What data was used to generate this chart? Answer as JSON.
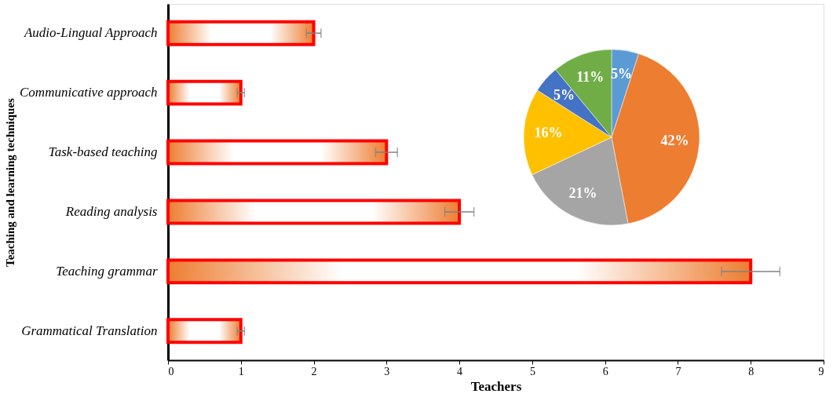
{
  "chart_data": [
    {
      "type": "bar",
      "orientation": "horizontal",
      "xlabel": "Teachers",
      "ylabel": "Teaching and learning techniques",
      "categories": [
        "Audio-Lingual Approach",
        "Communicative approach",
        "Task-based teaching",
        "Reading analysis",
        "Teaching grammar",
        "Grammatical Translation"
      ],
      "values": [
        2,
        1,
        3,
        4,
        8,
        1
      ],
      "color": "#ff0000",
      "errors": [
        0.1,
        0.05,
        0.15,
        0.2,
        0.4,
        0.05
      ],
      "xlim": [
        0,
        9
      ],
      "xticks": [
        0,
        1,
        2,
        3,
        4,
        5,
        6,
        7,
        8,
        9
      ],
      "grid": false
    },
    {
      "type": "pie",
      "categories": [
        null,
        null,
        null,
        null,
        null,
        null
      ],
      "values": [
        5,
        42,
        21,
        16,
        5,
        11
      ],
      "colors": [
        "#5b9bd5",
        "#ed7d31",
        "#a5a5a5",
        "#ffc000",
        "#4472c4",
        "#70ad47"
      ],
      "value_labels": [
        "5%",
        "42%",
        "21%",
        "16%",
        "5%",
        "11%"
      ]
    }
  ]
}
